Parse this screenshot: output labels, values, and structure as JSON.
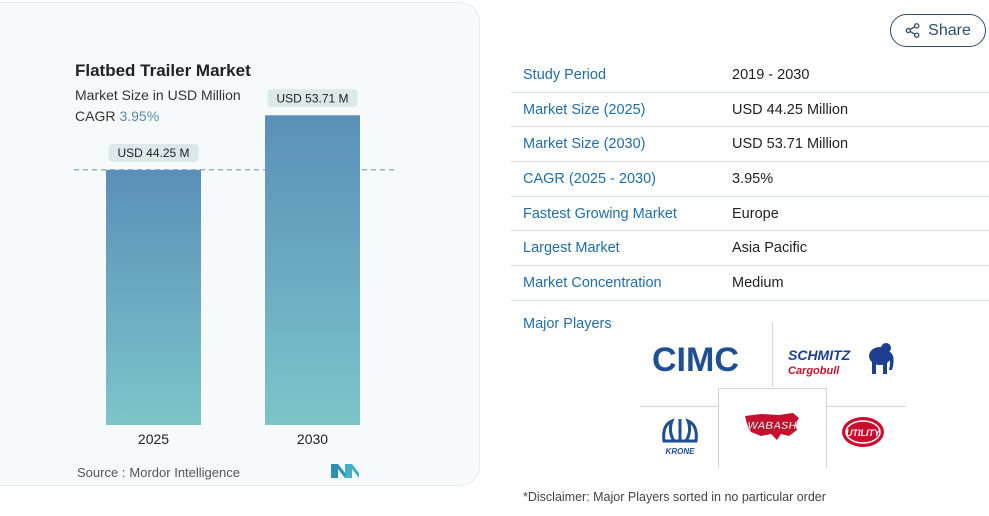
{
  "chart_card": {
    "title": "Flatbed Trailer Market",
    "subtitle": "Market Size in USD Million",
    "cagr_label": "CAGR",
    "cagr_value": "3.95%",
    "source_label": "Source :",
    "source_name": "Mordor Intelligence"
  },
  "chart_data": {
    "type": "bar",
    "categories": [
      "2025",
      "2030"
    ],
    "values": [
      44.25,
      53.71
    ],
    "data_labels": [
      "USD 44.25 M",
      "USD 53.71 M"
    ],
    "title": "Flatbed Trailer Market",
    "subtitle": "Market Size in USD Million",
    "xlabel": "",
    "ylabel": "",
    "ylim": [
      0,
      60
    ],
    "reference_line": 44.25,
    "grid": false,
    "bar_gradient": [
      "#5b8fb9",
      "#7cc5c9"
    ]
  },
  "share": {
    "label": "Share"
  },
  "info_table": [
    {
      "label": "Study Period",
      "value": "2019 - 2030"
    },
    {
      "label": "Market Size (2025)",
      "value": "USD 44.25 Million"
    },
    {
      "label": "Market Size (2030)",
      "value": "USD 53.71 Million"
    },
    {
      "label": "CAGR (2025 - 2030)",
      "value": "3.95%"
    },
    {
      "label": "Fastest Growing Market",
      "value": "Europe"
    },
    {
      "label": "Largest Market",
      "value": "Asia Pacific"
    },
    {
      "label": "Market Concentration",
      "value": "Medium"
    }
  ],
  "major_players": {
    "label": "Major Players",
    "logos": [
      {
        "name": "CIMC",
        "text": "CIMC",
        "color": "#1d4f91"
      },
      {
        "name": "Schmitz Cargobull",
        "text": "SCHMITZ",
        "subtext": "Cargobull",
        "color": "#1d3f8f",
        "accent": "#c8102e"
      },
      {
        "name": "Krone",
        "text": "KRONE",
        "color": "#1d4f91"
      },
      {
        "name": "Wabash",
        "text": "WABASH",
        "color": "#c8102e"
      },
      {
        "name": "Utility",
        "text": "UTILITY",
        "color": "#c8102e"
      }
    ]
  },
  "disclaimer": "*Disclaimer: Major Players sorted in no particular order"
}
